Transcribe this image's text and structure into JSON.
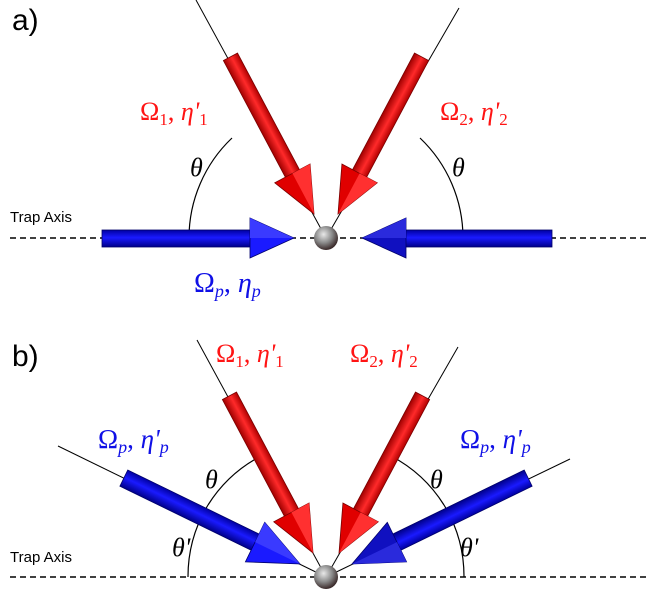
{
  "panels": {
    "a": {
      "label": "a)",
      "trap_axis_label": "Trap Axis",
      "beam1": {
        "omega": "Ω",
        "sub": "1",
        "eta": "η'",
        "eta_sub": "1",
        "color": "#ff1414"
      },
      "beam2": {
        "omega": "Ω",
        "sub": "2",
        "eta": "η'",
        "eta_sub": "2",
        "color": "#ff1414"
      },
      "probe": {
        "omega": "Ω",
        "sub": "p",
        "eta": "η",
        "eta_sub": "p",
        "color": "#1010e6"
      },
      "angle_left": "θ",
      "angle_right": "θ"
    },
    "b": {
      "label": "b)",
      "trap_axis_label": "Trap Axis",
      "beam1": {
        "omega": "Ω",
        "sub": "1",
        "eta": "η'",
        "eta_sub": "1",
        "color": "#ff1414"
      },
      "beam2": {
        "omega": "Ω",
        "sub": "2",
        "eta": "η'",
        "eta_sub": "2",
        "color": "#ff1414"
      },
      "probe_left": {
        "omega": "Ω",
        "sub": "p",
        "eta": "η'",
        "eta_sub": "p",
        "color": "#1010e6"
      },
      "probe_right": {
        "omega": "Ω",
        "sub": "p",
        "eta": "η'",
        "eta_sub": "p",
        "color": "#1010e6"
      },
      "angle_top_left": "θ",
      "angle_top_right": "θ",
      "angle_bottom_left": "θ'",
      "angle_bottom_right": "θ'"
    }
  }
}
